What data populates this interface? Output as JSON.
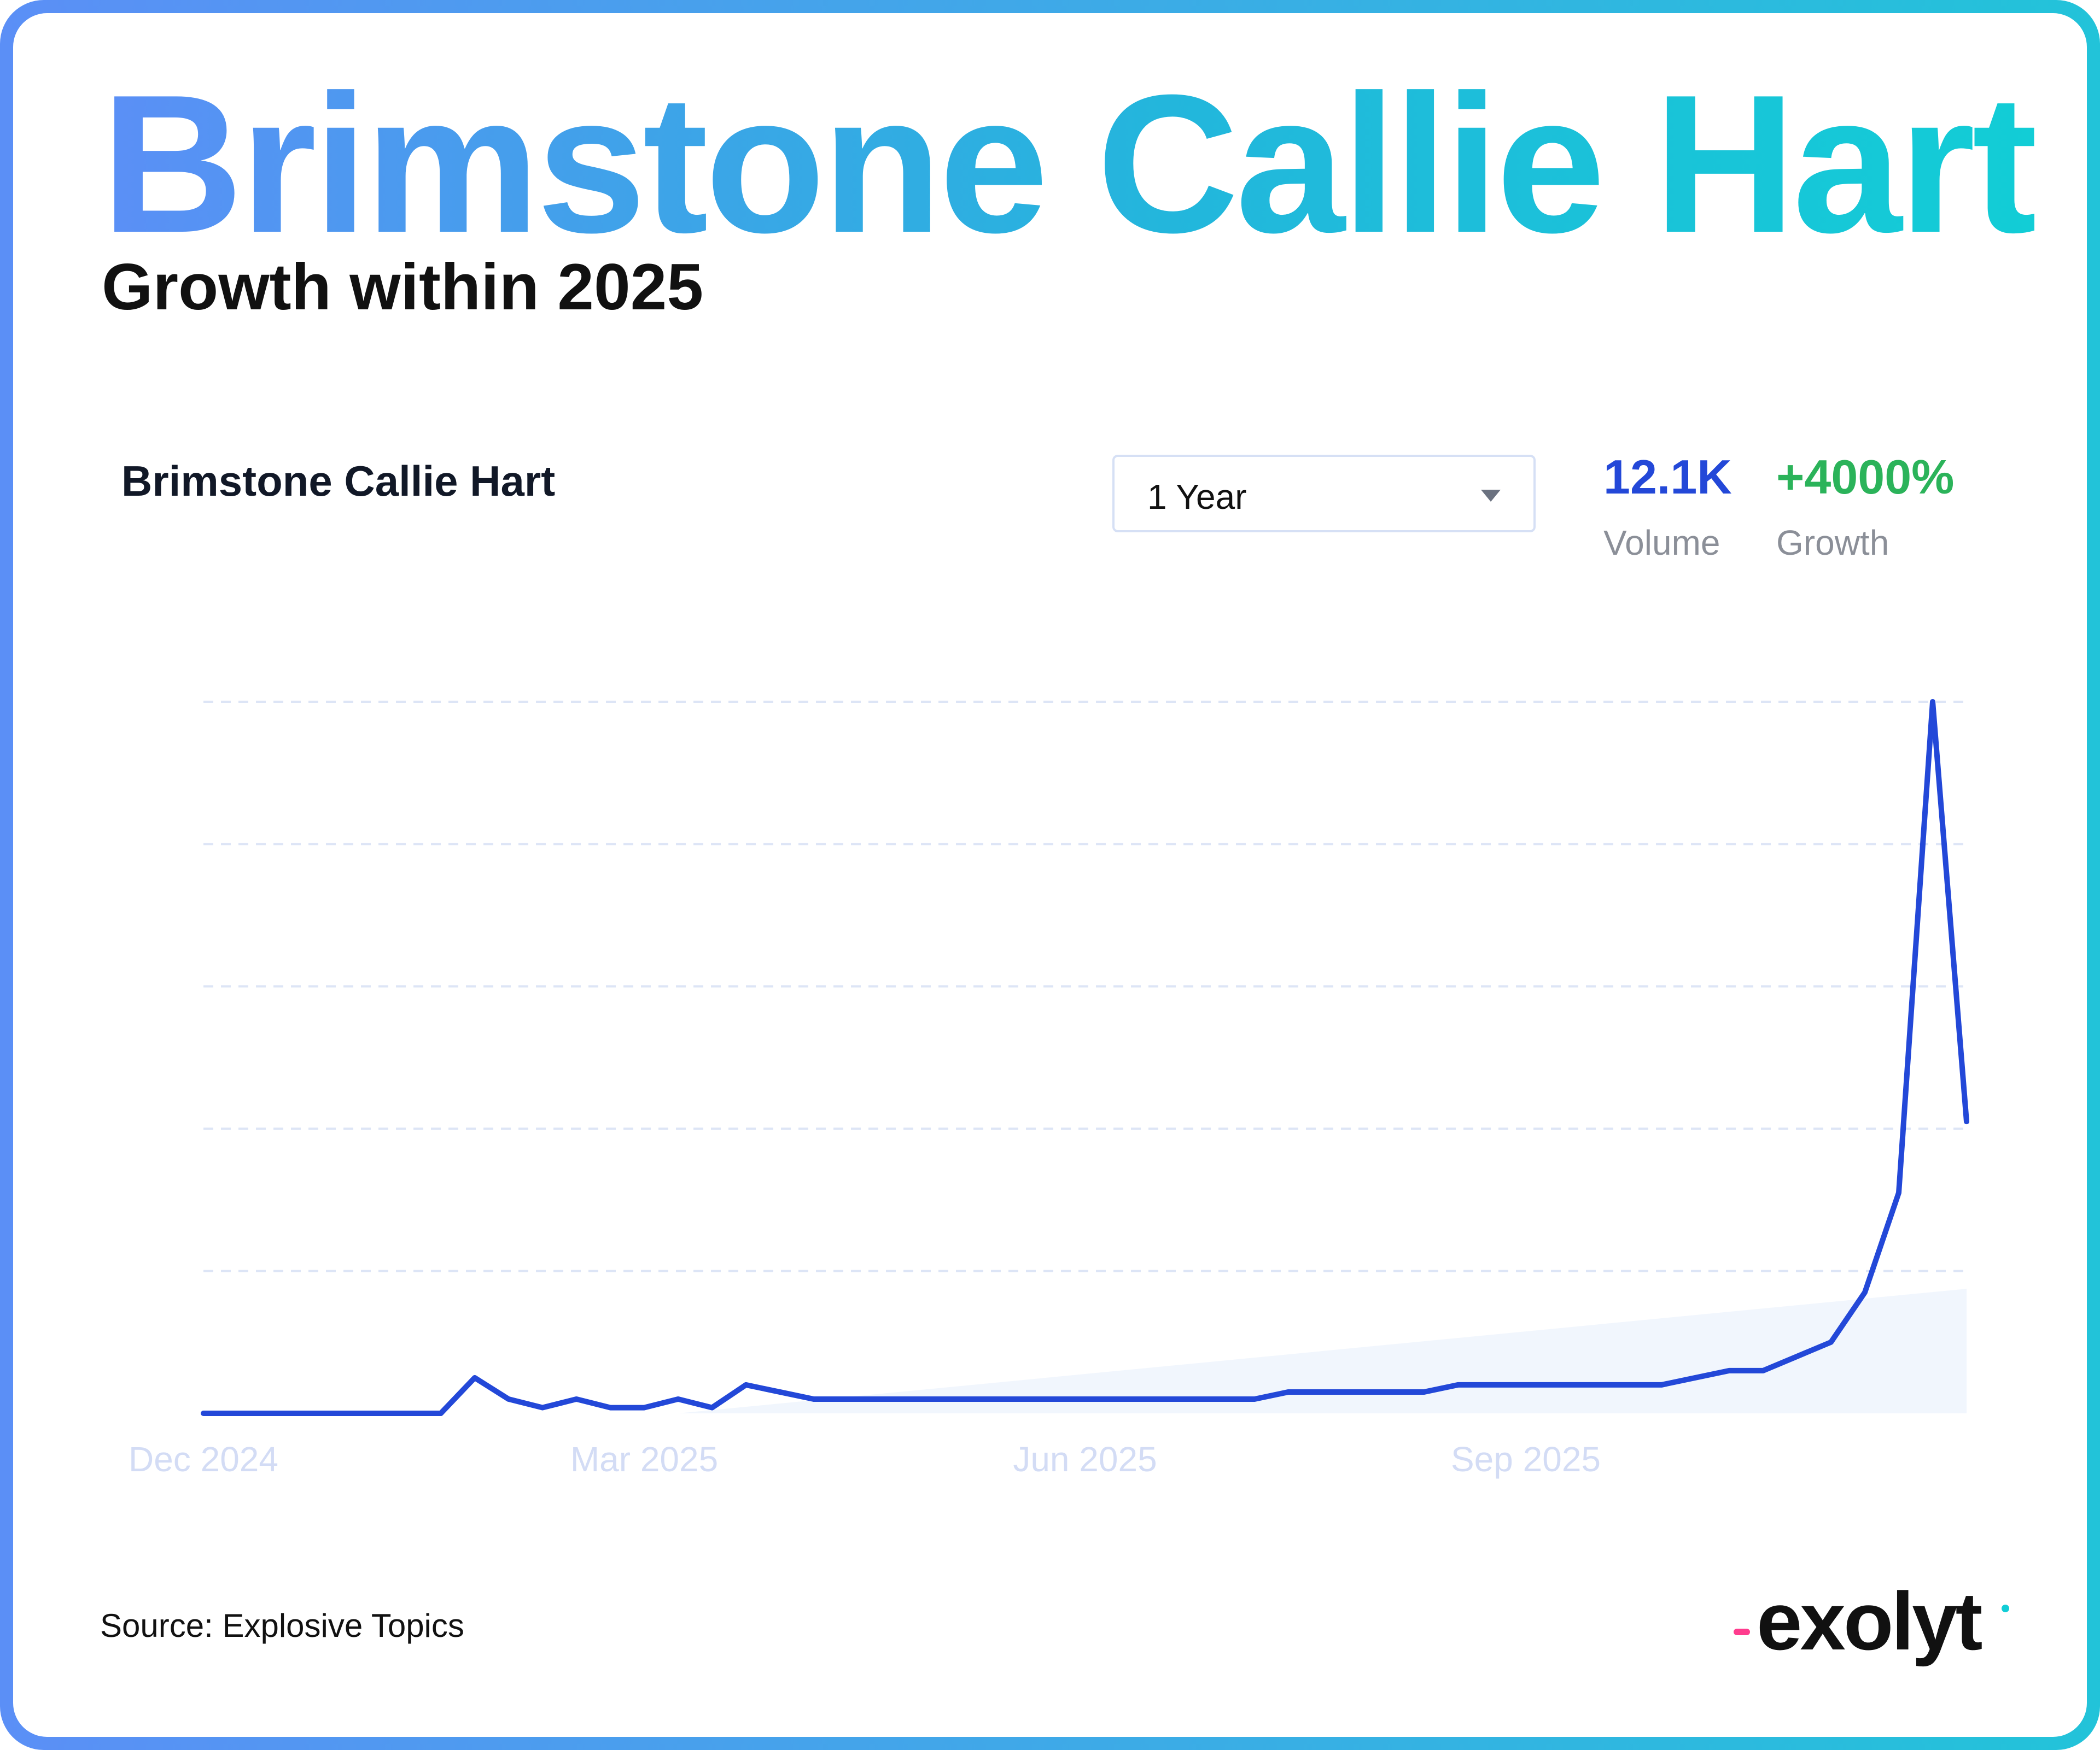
{
  "header": {
    "title": "Brimstone Callie Hart",
    "subtitle": "Growth within 2025"
  },
  "panel": {
    "keyword": "Brimstone Callie Hart",
    "range_select": {
      "value": "1 Year"
    },
    "stats": [
      {
        "value": "12.1K",
        "label": "Volume",
        "color": "#2348d8"
      },
      {
        "value": "+4000%",
        "label": "Growth",
        "color": "#2bb35a"
      }
    ]
  },
  "colors": {
    "line": "#2348d8",
    "trend_fill": "#e6eefc",
    "grid": "#dde5f6",
    "tick_text": "#d3dcf5"
  },
  "chart_data": {
    "type": "line",
    "title": "Brimstone Callie Hart",
    "xlabel": "",
    "ylabel": "",
    "x_tick_labels": [
      "Dec 2024",
      "Mar 2025",
      "Jun 2025",
      "Sep 2025"
    ],
    "x_tick_weeks": [
      0,
      13,
      26,
      39
    ],
    "y_axis_labels_shown": false,
    "grid": "horizontal-dashed",
    "ylim": [
      0,
      100
    ],
    "series": [
      {
        "values": [
          0,
          0,
          0,
          0,
          0,
          0,
          0,
          0,
          5,
          2,
          0.8,
          2,
          0.8,
          0.8,
          2,
          0.8,
          4,
          3,
          2,
          2,
          2,
          2,
          2,
          2,
          2,
          2,
          2,
          2,
          2,
          2,
          2,
          2,
          3,
          3,
          3,
          3,
          3,
          4,
          4,
          4,
          4,
          4,
          4,
          4,
          5,
          6,
          6,
          8,
          10,
          17,
          31,
          100,
          41
        ]
      }
    ],
    "trend_band": {
      "start": 4,
      "end": 17.5
    }
  },
  "footer": {
    "source": "Source: Explosive Topics",
    "logo": "exolyt"
  }
}
